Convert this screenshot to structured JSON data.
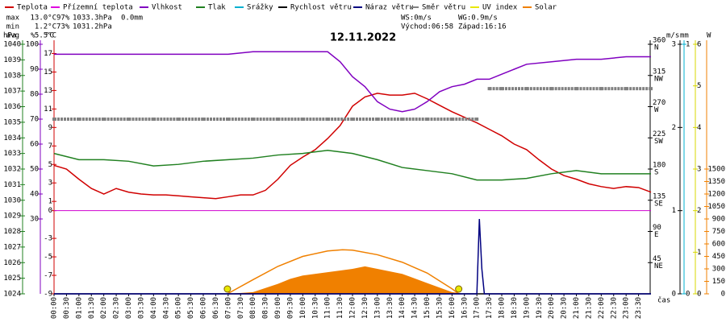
{
  "chart_data": {
    "type": "line",
    "title": "12.11.2022",
    "xlim": [
      0,
      24
    ],
    "x_axis_label": "čas",
    "xticks": [
      {
        "value": 0,
        "label": "00:00"
      },
      {
        "value": 0.5,
        "label": "00:30"
      },
      {
        "value": 1,
        "label": "01:00"
      },
      {
        "value": 1.5,
        "label": "01:30"
      },
      {
        "value": 2,
        "label": "02:00"
      },
      {
        "value": 2.5,
        "label": "02:30"
      },
      {
        "value": 3,
        "label": "03:00"
      },
      {
        "value": 3.5,
        "label": "03:30"
      },
      {
        "value": 4,
        "label": "04:00"
      },
      {
        "value": 4.5,
        "label": "04:30"
      },
      {
        "value": 5,
        "label": "05:00"
      },
      {
        "value": 5.5,
        "label": "05:30"
      },
      {
        "value": 6,
        "label": "06:00"
      },
      {
        "value": 6.5,
        "label": "06:30"
      },
      {
        "value": 7,
        "label": "07:00"
      },
      {
        "value": 7.5,
        "label": "07:30"
      },
      {
        "value": 8,
        "label": "08:00"
      },
      {
        "value": 8.5,
        "label": "08:30"
      },
      {
        "value": 9,
        "label": "09:00"
      },
      {
        "value": 9.5,
        "label": "09:30"
      },
      {
        "value": 10,
        "label": "10:00"
      },
      {
        "value": 10.5,
        "label": "10:30"
      },
      {
        "value": 11,
        "label": "11:00"
      },
      {
        "value": 11.5,
        "label": "11:30"
      },
      {
        "value": 12,
        "label": "12:00"
      },
      {
        "value": 12.5,
        "label": "12:30"
      },
      {
        "value": 13,
        "label": "13:00"
      },
      {
        "value": 13.5,
        "label": "13:30"
      },
      {
        "value": 14,
        "label": "14:00"
      },
      {
        "value": 14.5,
        "label": "14:30"
      },
      {
        "value": 15,
        "label": "15:00"
      },
      {
        "value": 15.5,
        "label": "15:30"
      },
      {
        "value": 16,
        "label": "16:00"
      },
      {
        "value": 16.5,
        "label": "16:30"
      },
      {
        "value": 17,
        "label": "17:00"
      },
      {
        "value": 17.5,
        "label": "17:30"
      },
      {
        "value": 18,
        "label": "18:00"
      },
      {
        "value": 18.5,
        "label": "18:30"
      },
      {
        "value": 19,
        "label": "19:00"
      },
      {
        "value": 19.5,
        "label": "19:30"
      },
      {
        "value": 20,
        "label": "20:00"
      },
      {
        "value": 20.5,
        "label": "20:30"
      },
      {
        "value": 21,
        "label": "21:00"
      },
      {
        "value": 21.5,
        "label": "21:30"
      },
      {
        "value": 22,
        "label": "22:00"
      },
      {
        "value": 22.5,
        "label": "22:30"
      },
      {
        "value": 23,
        "label": "23:00"
      },
      {
        "value": 23.5,
        "label": "23:30"
      }
    ],
    "axes": {
      "hpa": {
        "label": "hPa",
        "color": "#208020",
        "lim": [
          1024,
          1040
        ],
        "ticks": [
          1024,
          1025,
          1026,
          1027,
          1028,
          1029,
          1030,
          1031,
          1032,
          1033,
          1034,
          1035,
          1036,
          1037,
          1038,
          1039,
          1040
        ]
      },
      "pct": {
        "label": "%",
        "color": "#8000c0",
        "lim": [
          0,
          100
        ],
        "ticks": [
          30,
          40,
          50,
          60,
          70,
          80,
          90,
          100
        ]
      },
      "temp": {
        "label": "°C",
        "color": "#d00000",
        "lim": [
          -9,
          18
        ],
        "ticks": [
          -9,
          -7,
          -5,
          -3,
          0,
          1,
          3,
          5,
          7,
          9,
          11,
          13,
          15,
          17
        ]
      },
      "dir": {
        "color": "#000000",
        "lim": [
          0,
          360
        ],
        "ticks": [
          45,
          90,
          135,
          180,
          225,
          270,
          315,
          360
        ],
        "tick_names": [
          "NE",
          "E",
          "SE",
          "S",
          "SW",
          "W",
          "NW",
          "N"
        ]
      },
      "ms": {
        "label": "m/s",
        "color": "#000000",
        "lim": [
          0,
          3
        ],
        "ticks": [
          0,
          1,
          2,
          3
        ]
      },
      "mm": {
        "label": "mm",
        "color": "#00b0d0",
        "lim": [
          0,
          1
        ],
        "ticks": [
          0,
          1
        ]
      },
      "uv": {
        "color": "#d8d800",
        "lim": [
          0,
          6
        ],
        "ticks": [
          0,
          1,
          2,
          3,
          4,
          5,
          6
        ]
      },
      "solar": {
        "label": "W",
        "color": "#f08000",
        "lim": [
          0,
          3000
        ],
        "ticks": [
          0,
          150,
          300,
          450,
          600,
          750,
          900,
          1050,
          1200,
          1350,
          1500
        ]
      }
    },
    "series": [
      {
        "name": "Teplota",
        "color": "#d00000",
        "axis": "temp",
        "x": [
          0,
          0.5,
          1,
          1.5,
          2,
          2.5,
          3,
          3.5,
          4,
          4.5,
          5,
          5.5,
          6,
          6.5,
          7,
          7.5,
          8,
          8.5,
          9,
          9.5,
          10,
          10.5,
          11,
          11.5,
          12,
          12.5,
          13,
          13.5,
          14,
          14.5,
          15,
          15.5,
          16,
          16.5,
          17,
          17.5,
          18,
          18.5,
          19,
          19.5,
          20,
          20.5,
          21,
          21.5,
          22,
          22.5,
          23,
          23.5,
          24
        ],
        "values": [
          4.9,
          4.5,
          3.4,
          2.4,
          1.8,
          2.4,
          2.0,
          1.8,
          1.7,
          1.7,
          1.6,
          1.5,
          1.4,
          1.3,
          1.5,
          1.7,
          1.7,
          2.2,
          3.4,
          4.9,
          5.8,
          6.6,
          7.8,
          9.2,
          11.3,
          12.3,
          12.7,
          12.5,
          12.5,
          12.7,
          12.1,
          11.4,
          10.7,
          10.1,
          9.5,
          8.8,
          8.1,
          7.2,
          6.6,
          5.5,
          4.5,
          3.8,
          3.4,
          2.9,
          2.6,
          2.4,
          2.6,
          2.5,
          2.0
        ]
      },
      {
        "name": "Přízemní teplota",
        "color": "#e000e0",
        "axis": "temp"
      },
      {
        "name": "Vlhkost",
        "color": "#8000c0",
        "axis": "pct",
        "x": [
          0,
          1,
          2,
          3,
          4,
          5,
          6,
          7,
          8,
          9,
          10,
          11,
          11.5,
          12,
          12.5,
          13,
          13.5,
          14,
          14.5,
          15,
          15.5,
          16,
          16.5,
          17,
          17.5,
          18,
          18.5,
          19,
          20,
          21,
          22,
          23,
          24
        ],
        "values": [
          96,
          96,
          96,
          96,
          96,
          96,
          96,
          96,
          97,
          97,
          97,
          97,
          93,
          87,
          83,
          77,
          74,
          73,
          74,
          77,
          81,
          83,
          84,
          86,
          86,
          88,
          90,
          92,
          93,
          94,
          94,
          95,
          95
        ]
      },
      {
        "name": "Tlak",
        "color": "#208020",
        "axis": "hpa",
        "x": [
          0,
          1,
          2,
          3,
          4,
          5,
          6,
          7,
          8,
          9,
          10,
          11,
          12,
          13,
          14,
          15,
          16,
          17,
          18,
          19,
          20,
          21,
          22,
          23,
          24
        ],
        "values": [
          1033.0,
          1032.6,
          1032.6,
          1032.5,
          1032.2,
          1032.3,
          1032.5,
          1032.6,
          1032.7,
          1032.9,
          1033.0,
          1033.2,
          1033.0,
          1032.6,
          1032.1,
          1031.9,
          1031.7,
          1031.3,
          1031.3,
          1031.4,
          1031.7,
          1031.9,
          1031.7,
          1031.7,
          1031.7
        ]
      },
      {
        "name": "Srážky",
        "color": "#00b0d0",
        "axis": "mm"
      },
      {
        "name": "Rychlost větru",
        "color": "#000000",
        "axis": "ms",
        "x": [
          0,
          24
        ],
        "values": [
          0,
          0
        ]
      },
      {
        "name": "Náraz větru",
        "color": "#000080",
        "axis": "ms",
        "x": [
          0,
          17,
          17.1,
          17.2,
          17.3,
          24
        ],
        "values": [
          0,
          0,
          0.9,
          0.3,
          0,
          0
        ]
      },
      {
        "name": "Směr větru",
        "color": "#808080",
        "axis": "dir",
        "style": "dots",
        "x": [
          0,
          1,
          2,
          3,
          4,
          5,
          6,
          7,
          8,
          9,
          10,
          11,
          12,
          13,
          14,
          15,
          16,
          17,
          17.5,
          18,
          19,
          20,
          21,
          22,
          23,
          24
        ],
        "values": [
          252,
          252,
          252,
          252,
          252,
          252,
          252,
          252,
          252,
          252,
          252,
          252,
          252,
          252,
          252,
          252,
          252,
          252,
          296,
          296,
          296,
          296,
          296,
          296,
          296,
          296
        ]
      },
      {
        "name": "UV index",
        "color": "#e8e800",
        "axis": "uv",
        "legend_text_color": "#e8e800"
      },
      {
        "name": "Solar",
        "color": "#f08000",
        "axis": "solar",
        "style": "area",
        "legend_text_color": "#f08000",
        "x": [
          7,
          8,
          9,
          9.5,
          10,
          11,
          12,
          12.5,
          13,
          14,
          15,
          16,
          16.5
        ],
        "values": [
          0,
          20,
          120,
          180,
          220,
          260,
          300,
          330,
          300,
          240,
          130,
          20,
          0
        ],
        "clear_sky_x": [
          6.97,
          8,
          9,
          10,
          11,
          11.6,
          12,
          13,
          14,
          15,
          16,
          16.27
        ],
        "clear_sky_values": [
          0,
          170,
          330,
          450,
          515,
          530,
          525,
          470,
          380,
          250,
          60,
          0
        ]
      }
    ],
    "zero_line": {
      "axis": "temp",
      "value": 0,
      "color": "#d000d0"
    },
    "sun_marks": {
      "x": [
        6.97,
        16.27
      ],
      "color": "#e8e800"
    },
    "info": {
      "max": {
        "label": "max",
        "color": "#d00000",
        "items": [
          "13.0°C",
          "97%",
          "1033.3hPa"
        ],
        "rain": "0.0mm"
      },
      "min": {
        "label": "min",
        "color": "#0000c0",
        "items": [
          "1.2°C",
          "73%",
          "1031.2hPa"
        ]
      },
      "avg": {
        "label": "avg",
        "color": "#000000",
        "items": [
          "5.5°C"
        ]
      },
      "wind": [
        "WS:0m/s",
        "WG:0.9m/s"
      ],
      "sun": [
        "Východ:06:58",
        "Západ:16:16"
      ]
    }
  }
}
